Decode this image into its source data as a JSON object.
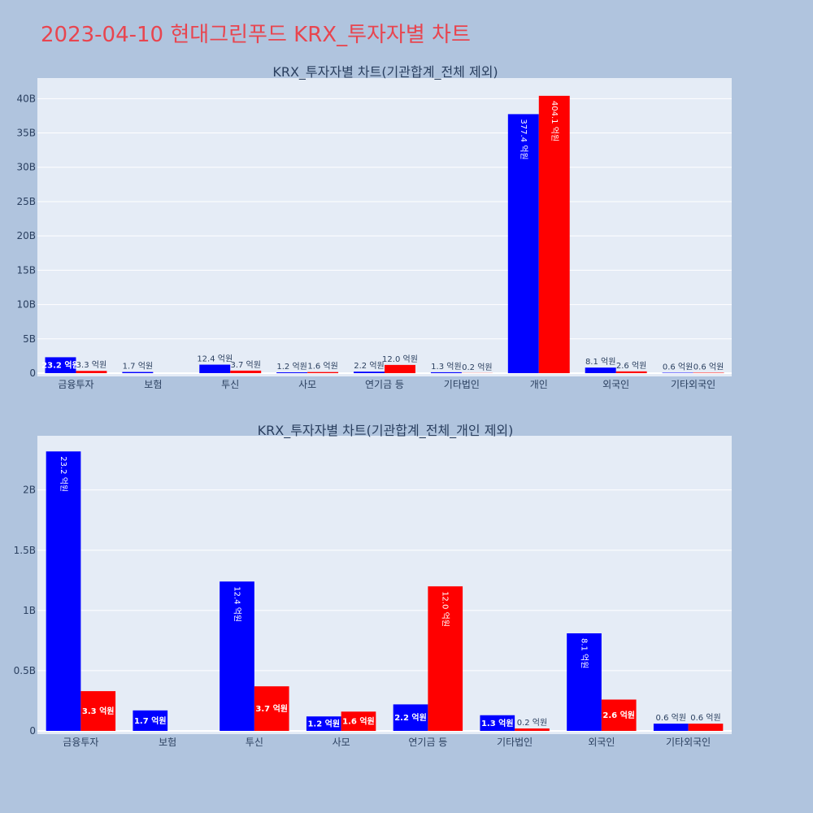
{
  "page": {
    "title": "2023-04-10 현대그린푸드 KRX_투자자별 차트"
  },
  "colors": {
    "background": "#b0c4de",
    "plot_bg": "#e5ecf6",
    "grid": "#ffffff",
    "title": "#e8454f",
    "text": "#2a3f5f",
    "series_buy": "#0000ff",
    "series_sell": "#ff0000"
  },
  "chart_data": [
    {
      "type": "bar",
      "title": "KRX_투자자별 차트(기관합계_전체 제외)",
      "categories": [
        "금융투자",
        "보험",
        "투신",
        "사모",
        "연기금 등",
        "기타법인",
        "개인",
        "외국인",
        "기타외국인"
      ],
      "series": [
        {
          "color": "#0000ff",
          "values": [
            2320000000,
            170000000,
            1240000000,
            120000000,
            220000000,
            130000000,
            37740000000,
            810000000,
            60000000
          ],
          "labels": [
            "23.2 억원",
            "1.7 억원",
            "12.4 억원",
            "1.2 억원",
            "2.2 억원",
            "1.3 억원",
            "377.4 억원",
            "8.1 억원",
            "0.6 억원"
          ]
        },
        {
          "color": "#ff0000",
          "values": [
            330000000,
            0,
            370000000,
            160000000,
            1200000000,
            20000000,
            40410000000,
            260000000,
            60000000
          ],
          "labels": [
            "3.3 억원",
            "",
            "3.7 억원",
            "1.6 억원",
            "12.0 억원",
            "0.2 억원",
            "404.1 억원",
            "2.6 억원",
            "0.6 억원"
          ]
        }
      ],
      "yticks": [
        "0",
        "5B",
        "10B",
        "15B",
        "20B",
        "25B",
        "30B",
        "35B",
        "40B"
      ],
      "ylim": [
        0,
        43000000000
      ],
      "grid": true
    },
    {
      "type": "bar",
      "title": "KRX_투자자별 차트(기관합계_전체_개인 제외)",
      "categories": [
        "금융투자",
        "보험",
        "투신",
        "사모",
        "연기금 등",
        "기타법인",
        "외국인",
        "기타외국인"
      ],
      "series": [
        {
          "color": "#0000ff",
          "values": [
            2320000000,
            170000000,
            1240000000,
            120000000,
            220000000,
            130000000,
            810000000,
            60000000
          ],
          "labels": [
            "23.2 억원",
            "1.7 억원",
            "12.4 억원",
            "1.2 억원",
            "2.2 억원",
            "1.3 억원",
            "8.1 억원",
            "0.6 억원"
          ]
        },
        {
          "color": "#ff0000",
          "values": [
            330000000,
            0,
            370000000,
            160000000,
            1200000000,
            20000000,
            260000000,
            60000000
          ],
          "labels": [
            "3.3 억원",
            "",
            "3.7 억원",
            "1.6 억원",
            "12.0 억원",
            "0.2 억원",
            "2.6 억원",
            "0.6 억원"
          ]
        }
      ],
      "yticks": [
        "0",
        "0.5B",
        "1B",
        "1.5B",
        "2B"
      ],
      "ylim": [
        0,
        2450000000
      ],
      "grid": true
    }
  ]
}
